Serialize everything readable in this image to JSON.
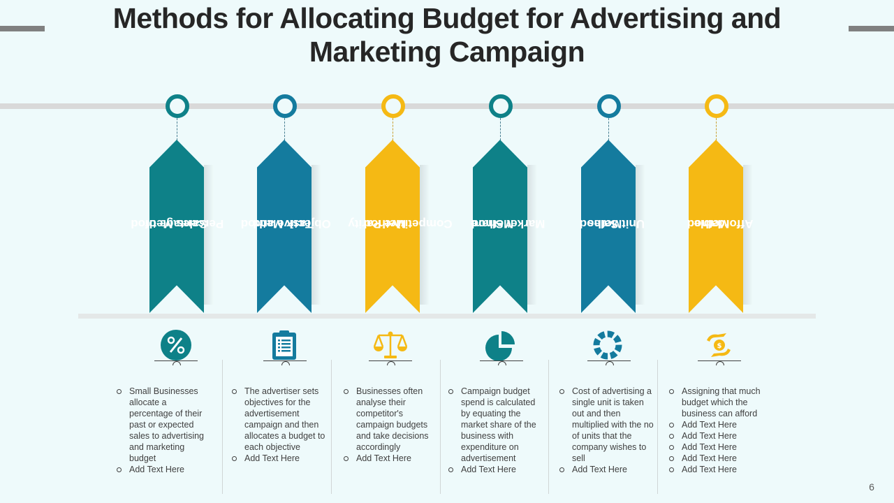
{
  "title": "Methods for Allocating Budget for Advertising and Marketing Campaign",
  "page_number": "6",
  "colors": {
    "teal": "#0e8188",
    "blue": "#147b9e",
    "gold": "#f5b914",
    "background": "#eefafb"
  },
  "methods": [
    {
      "label": "Percentage of Sales Method",
      "label_lines": [
        "Percentage of",
        "Sales Method"
      ],
      "color": "teal",
      "icon": "percent-icon",
      "bullets": [
        "Small Businesses allocate a percentage of their past or expected sales to advertising and marketing budget",
        "Add Text Here"
      ]
    },
    {
      "label": "Objective and Task Method",
      "label_lines": [
        "Objective and",
        "Task Method"
      ],
      "color": "blue",
      "icon": "clipboard-icon",
      "bullets": [
        "The advertiser sets objectives for the advertisement campaign and then allocates a budget to each objective",
        "Add Text Here"
      ]
    },
    {
      "label": "Competitive Parity Method",
      "label_lines": [
        "Competitive Parity",
        "Method"
      ],
      "color": "gold",
      "icon": "balance-scale-icon",
      "bullets": [
        "Businesses often analyse their competitor's campaign budgets and take decisions accordingly",
        "Add Text Here"
      ]
    },
    {
      "label": "Market Share Method",
      "label_lines": [
        "Market Share",
        "Method"
      ],
      "color": "teal",
      "icon": "pie-chart-icon",
      "bullets": [
        "Campaign budget spend is calculated by equating the market share of the business with expenditure on advertisement",
        "Add Text Here"
      ]
    },
    {
      "label": "Unit Sales Method",
      "label_lines": [
        "Unit Sales",
        "Method"
      ],
      "color": "blue",
      "icon": "ring-chart-icon",
      "bullets": [
        "Cost of advertising a single unit is taken out and then multiplied with the no of units that the company wishes to sell",
        "Add Text Here"
      ]
    },
    {
      "label": "Affordable Method",
      "label_lines": [
        "Affordable",
        "Method"
      ],
      "color": "gold",
      "icon": "money-hand-icon",
      "bullets": [
        "Assigning that much budget which the business can afford",
        "Add Text Here",
        "Add Text Here",
        "Add Text Here",
        "Add Text Here",
        "Add Text Here"
      ]
    }
  ]
}
